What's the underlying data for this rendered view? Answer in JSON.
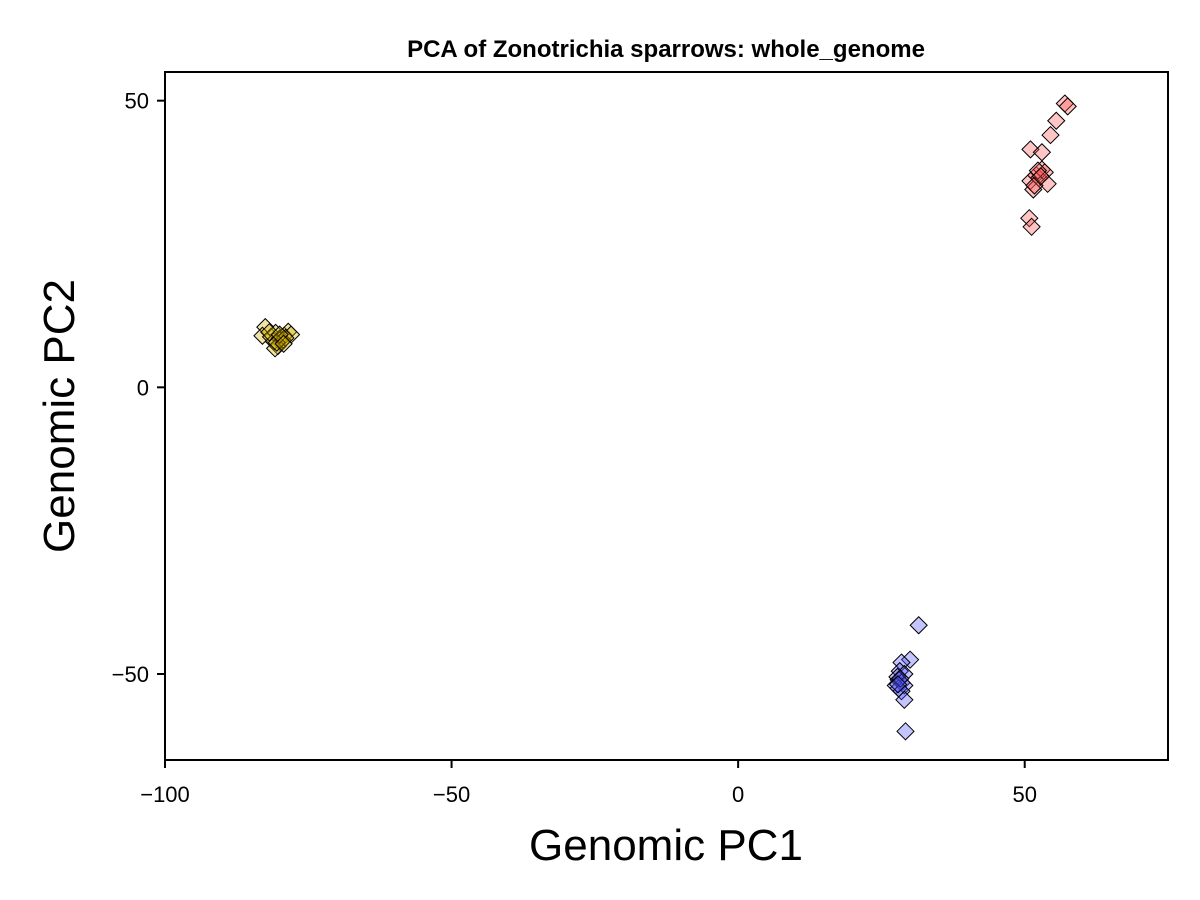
{
  "chart_data": {
    "type": "scatter",
    "title": "PCA of Zonotrichia sparrows: whole_genome",
    "xlabel": "Genomic PC1",
    "ylabel": "Genomic PC2",
    "xlim": [
      -100,
      75
    ],
    "ylim": [
      -65,
      55
    ],
    "x_ticks": [
      -100,
      -50,
      0,
      50
    ],
    "y_ticks": [
      -50,
      0,
      50
    ],
    "x_tick_labels": [
      "−100",
      "−50",
      "0",
      "50"
    ],
    "y_tick_labels": [
      "−50",
      "0",
      "50"
    ],
    "grid": false,
    "marker": "diamond",
    "series": [
      {
        "color": "#d4b000",
        "points": [
          [
            -82.5,
            10.5
          ],
          [
            -83.0,
            9.0
          ],
          [
            -81.5,
            8.8
          ],
          [
            -80.7,
            9.5
          ],
          [
            -80.0,
            8.5
          ],
          [
            -79.8,
            7.8
          ],
          [
            -79.2,
            9.0
          ],
          [
            -78.5,
            9.7
          ],
          [
            -78.0,
            9.2
          ],
          [
            -80.3,
            7.2
          ],
          [
            -81.0,
            8.0
          ],
          [
            -79.5,
            8.2
          ],
          [
            -80.8,
            6.8
          ],
          [
            -79.0,
            8.6
          ],
          [
            -81.8,
            9.6
          ],
          [
            -80.5,
            7.8
          ],
          [
            -80.0,
            9.2
          ],
          [
            -79.3,
            7.6
          ]
        ]
      },
      {
        "color": "#ff5555",
        "points": [
          [
            57.0,
            49.5
          ],
          [
            57.5,
            49.0
          ],
          [
            55.5,
            46.5
          ],
          [
            54.5,
            44.0
          ],
          [
            51.0,
            41.5
          ],
          [
            53.0,
            41.0
          ],
          [
            51.0,
            36.0
          ],
          [
            51.5,
            34.5
          ],
          [
            52.0,
            37.0
          ],
          [
            52.5,
            36.5
          ],
          [
            53.0,
            38.0
          ],
          [
            53.5,
            37.5
          ],
          [
            54.0,
            35.5
          ],
          [
            51.7,
            35.2
          ],
          [
            52.3,
            37.8
          ],
          [
            50.8,
            29.5
          ],
          [
            51.2,
            28.0
          ],
          [
            52.8,
            36.8
          ]
        ]
      },
      {
        "color": "#5555ff",
        "points": [
          [
            31.5,
            -41.5
          ],
          [
            30.0,
            -47.5
          ],
          [
            28.5,
            -48.0
          ],
          [
            28.2,
            -49.5
          ],
          [
            29.0,
            -50.0
          ],
          [
            27.8,
            -50.5
          ],
          [
            28.0,
            -51.0
          ],
          [
            28.5,
            -51.5
          ],
          [
            27.5,
            -52.0
          ],
          [
            29.0,
            -52.0
          ],
          [
            28.0,
            -52.5
          ],
          [
            28.5,
            -53.0
          ],
          [
            29.0,
            -54.5
          ],
          [
            29.2,
            -60.0
          ],
          [
            28.3,
            -50.8
          ],
          [
            27.9,
            -51.8
          ]
        ]
      }
    ]
  }
}
